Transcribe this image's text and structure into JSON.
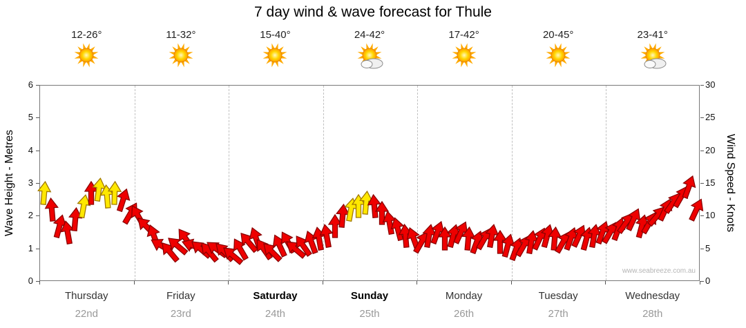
{
  "title": "7 day wind & wave forecast for Thule",
  "watermark": "www.seabreeze.com.au",
  "colors": {
    "arrow_red": "#ee0000",
    "arrow_red_outline": "#8b0000",
    "arrow_yellow": "#ffe800",
    "arrow_yellow_outline": "#a07800",
    "grid": "#c0c0c0",
    "axis": "#555555",
    "sun_core": "#ffd700",
    "sun_ray": "#ffaa00",
    "cloud_fill": "#f0f0f0",
    "cloud_outline": "#8a8a8a"
  },
  "days": [
    {
      "name": "Thursday",
      "date": "22nd",
      "temp": "12-26°",
      "icon": "sunny",
      "bold": false
    },
    {
      "name": "Friday",
      "date": "23rd",
      "temp": "11-32°",
      "icon": "sunny",
      "bold": false
    },
    {
      "name": "Saturday",
      "date": "24th",
      "temp": "15-40°",
      "icon": "sunny",
      "bold": true
    },
    {
      "name": "Sunday",
      "date": "25th",
      "temp": "24-42°",
      "icon": "partly-cloudy",
      "bold": true
    },
    {
      "name": "Monday",
      "date": "26th",
      "temp": "17-42°",
      "icon": "sunny",
      "bold": false
    },
    {
      "name": "Tuesday",
      "date": "27th",
      "temp": "20-45°",
      "icon": "sunny",
      "bold": false
    },
    {
      "name": "Wednesday",
      "date": "28th",
      "temp": "23-41°",
      "icon": "partly-cloudy",
      "bold": false
    }
  ],
  "chart_data": {
    "type": "wind-arrows",
    "x_categories": [
      "Thursday 22nd",
      "Friday 23rd",
      "Saturday 24th",
      "Sunday 25th",
      "Monday 26th",
      "Tuesday 27th",
      "Wednesday 28th"
    ],
    "left_axis": {
      "label": "Wave Height - Metres",
      "min": 0,
      "max": 6,
      "ticks": [
        0,
        1,
        2,
        3,
        4,
        5,
        6
      ]
    },
    "right_axis": {
      "label": "Wind Speed - Knots",
      "min": 0,
      "max": 30,
      "ticks": [
        0,
        5,
        10,
        15,
        20,
        25,
        30
      ]
    },
    "series_unit": "knots",
    "days": [
      {
        "name": "Thursday",
        "knots": [
          13.5,
          11,
          8.5,
          7.5,
          9.5,
          11.5,
          13.5,
          14,
          13,
          13.5,
          12.5,
          10.5
        ],
        "dir_deg": [
          -85,
          -95,
          -75,
          -100,
          -85,
          -80,
          -90,
          -82,
          -95,
          -88,
          -72,
          -60
        ],
        "colors": [
          "y",
          "r",
          "r",
          "r",
          "r",
          "y",
          "r",
          "y",
          "y",
          "y",
          "r",
          "r"
        ]
      },
      {
        "name": "Friday",
        "knots": [
          10,
          8.5,
          7,
          5.5,
          4.5,
          5.5,
          6.5,
          5.5,
          5,
          4.5,
          5,
          4.5
        ],
        "dir_deg": [
          -120,
          -135,
          -110,
          -150,
          -130,
          -140,
          -125,
          -160,
          -140,
          -130,
          -145,
          -135
        ],
        "colors": [
          "r",
          "r",
          "r",
          "r",
          "r",
          "r",
          "r",
          "r",
          "r",
          "r",
          "r",
          "r"
        ]
      },
      {
        "name": "Saturday",
        "knots": [
          4,
          5,
          6,
          6.5,
          5,
          4.5,
          5.5,
          6,
          5,
          5.5,
          6,
          6.5
        ],
        "dir_deg": [
          -140,
          -120,
          -130,
          -110,
          -125,
          -135,
          -115,
          -120,
          -140,
          -125,
          -110,
          -100
        ],
        "colors": [
          "r",
          "r",
          "r",
          "r",
          "r",
          "r",
          "r",
          "r",
          "r",
          "r",
          "r",
          "r"
        ]
      },
      {
        "name": "Sunday",
        "knots": [
          7,
          8.5,
          10,
          11,
          11.5,
          12,
          11.5,
          10.5,
          9,
          8,
          7,
          6.5
        ],
        "dir_deg": [
          -100,
          -90,
          -85,
          -80,
          -90,
          -85,
          -95,
          -90,
          -100,
          -105,
          -95,
          -110
        ],
        "colors": [
          "r",
          "r",
          "r",
          "y",
          "y",
          "y",
          "r",
          "r",
          "r",
          "r",
          "r",
          "r"
        ]
      },
      {
        "name": "Monday",
        "knots": [
          6,
          7,
          7.5,
          6.5,
          7,
          7.5,
          6.5,
          6,
          6.5,
          7,
          6,
          5.5
        ],
        "dir_deg": [
          -60,
          -80,
          -70,
          -90,
          -75,
          -65,
          -85,
          -70,
          -60,
          -80,
          -90,
          -75
        ],
        "colors": [
          "r",
          "r",
          "r",
          "r",
          "r",
          "r",
          "r",
          "r",
          "r",
          "r",
          "r",
          "r"
        ]
      },
      {
        "name": "Tuesday",
        "knots": [
          5,
          5.5,
          6,
          6.5,
          7,
          6.5,
          6,
          6.5,
          7,
          6.5,
          7,
          7.5
        ],
        "dir_deg": [
          -70,
          -60,
          -80,
          -65,
          -75,
          -85,
          -60,
          -70,
          -65,
          -75,
          -80,
          -70
        ],
        "colors": [
          "r",
          "r",
          "r",
          "r",
          "r",
          "r",
          "r",
          "r",
          "r",
          "r",
          "r",
          "r"
        ]
      },
      {
        "name": "Wednesday",
        "knots": [
          7.5,
          8,
          9,
          9.5,
          8.5,
          9,
          10,
          11,
          12,
          13,
          14.5,
          11
        ],
        "dir_deg": [
          -60,
          -70,
          -55,
          -65,
          -75,
          -60,
          -50,
          -65,
          -55,
          -60,
          -70,
          -65
        ],
        "colors": [
          "r",
          "r",
          "r",
          "r",
          "r",
          "r",
          "r",
          "r",
          "r",
          "r",
          "r",
          "r"
        ]
      }
    ]
  }
}
